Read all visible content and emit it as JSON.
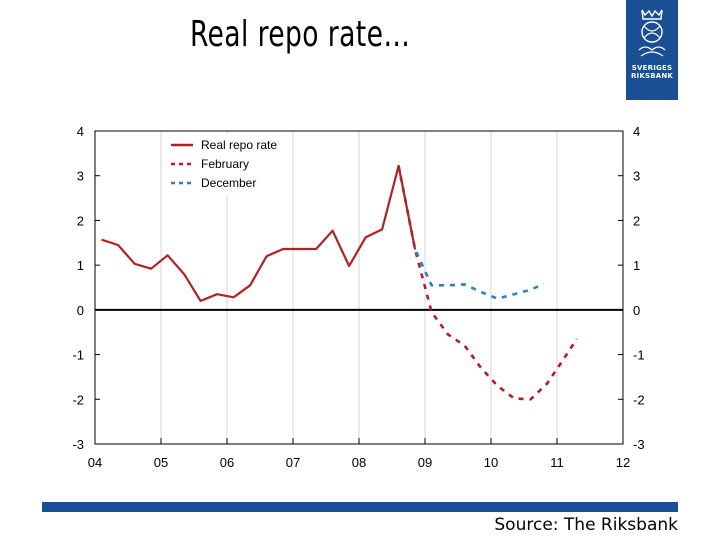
{
  "slide": {
    "title": "Real repo rate…",
    "source": "Source: The Riksbank"
  },
  "logo": {
    "line1": "SVERIGES",
    "line2": "RIKSBANK"
  },
  "colors": {
    "brand": "#1b4f93",
    "real": "#b22222",
    "february": "#c0181e",
    "december": "#2f7fc1"
  },
  "chart_data": {
    "type": "line",
    "xlim": [
      2004,
      2012
    ],
    "ylim": [
      -3,
      4
    ],
    "x_ticks": [
      {
        "value": 2004,
        "label": "04"
      },
      {
        "value": 2005,
        "label": "05"
      },
      {
        "value": 2006,
        "label": "06"
      },
      {
        "value": 2007,
        "label": "07"
      },
      {
        "value": 2008,
        "label": "08"
      },
      {
        "value": 2009,
        "label": "09"
      },
      {
        "value": 2010,
        "label": "10"
      },
      {
        "value": 2011,
        "label": "11"
      },
      {
        "value": 2012,
        "label": "12"
      }
    ],
    "y_ticks": [
      4,
      3,
      2,
      1,
      0,
      -1,
      -2,
      -3
    ],
    "grid": "vertical",
    "legend_position": "top-left",
    "series": [
      {
        "name": "Real repo rate",
        "style": "solid",
        "color": "#b22222",
        "points": [
          [
            2004.1,
            1.57
          ],
          [
            2004.35,
            1.45
          ],
          [
            2004.6,
            1.03
          ],
          [
            2004.85,
            0.92
          ],
          [
            2005.1,
            1.22
          ],
          [
            2005.35,
            0.8
          ],
          [
            2005.6,
            0.2
          ],
          [
            2005.85,
            0.35
          ],
          [
            2006.1,
            0.28
          ],
          [
            2006.35,
            0.55
          ],
          [
            2006.6,
            1.2
          ],
          [
            2006.85,
            1.36
          ],
          [
            2007.1,
            1.36
          ],
          [
            2007.35,
            1.36
          ],
          [
            2007.6,
            1.77
          ],
          [
            2007.85,
            0.98
          ],
          [
            2008.1,
            1.62
          ],
          [
            2008.35,
            1.8
          ],
          [
            2008.6,
            3.22
          ],
          [
            2008.85,
            1.35
          ]
        ]
      },
      {
        "name": "February",
        "style": "dashed",
        "color": "#c0181e",
        "points": [
          [
            2008.6,
            3.22
          ],
          [
            2008.85,
            1.35
          ],
          [
            2009.1,
            -0.05
          ],
          [
            2009.35,
            -0.55
          ],
          [
            2009.6,
            -0.8
          ],
          [
            2009.85,
            -1.3
          ],
          [
            2010.1,
            -1.7
          ],
          [
            2010.35,
            -1.98
          ],
          [
            2010.6,
            -2.0
          ],
          [
            2010.85,
            -1.65
          ],
          [
            2011.1,
            -1.1
          ],
          [
            2011.3,
            -0.65
          ]
        ]
      },
      {
        "name": "December",
        "style": "dashed",
        "color": "#2f7fc1",
        "points": [
          [
            2008.6,
            3.22
          ],
          [
            2008.85,
            1.35
          ],
          [
            2009.1,
            0.55
          ],
          [
            2009.35,
            0.55
          ],
          [
            2009.6,
            0.57
          ],
          [
            2009.85,
            0.4
          ],
          [
            2010.1,
            0.25
          ],
          [
            2010.35,
            0.35
          ],
          [
            2010.6,
            0.45
          ],
          [
            2010.8,
            0.58
          ]
        ]
      }
    ]
  }
}
